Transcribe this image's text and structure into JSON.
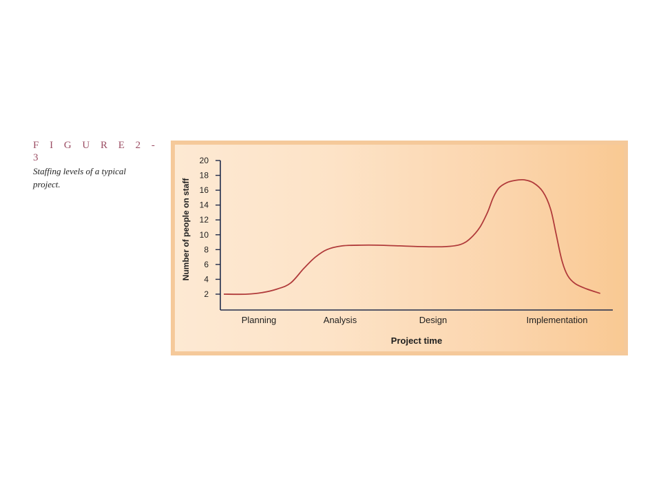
{
  "figure": {
    "label": "F I G U R E   2 - 3",
    "caption_line1": "Staffing levels of a typical",
    "caption_line2": "project."
  },
  "chart_data": {
    "type": "line",
    "title": "",
    "xlabel": "Project time",
    "ylabel": "Number of people on staff",
    "ylim": [
      0,
      20
    ],
    "yticks": [
      2,
      4,
      6,
      8,
      10,
      12,
      14,
      16,
      18,
      20
    ],
    "phases": [
      "Planning",
      "Analysis",
      "Design",
      "Implementation"
    ],
    "xlim": [
      0,
      100
    ],
    "x": [
      0,
      6,
      10,
      14,
      17.5,
      21,
      24,
      27,
      31,
      36,
      40,
      46,
      52,
      58,
      62,
      64.5,
      67,
      69,
      70.5,
      72,
      74,
      76,
      78.5,
      81,
      83.5,
      85.5,
      87,
      88.5,
      90,
      92,
      95,
      98.5
    ],
    "y": [
      2,
      2,
      2.2,
      2.7,
      3.5,
      5.5,
      7,
      8,
      8.5,
      8.6,
      8.6,
      8.5,
      8.4,
      8.4,
      8.7,
      9.5,
      11,
      13,
      15,
      16.3,
      17,
      17.3,
      17.4,
      17,
      15.8,
      13.5,
      10,
      6.5,
      4.5,
      3.4,
      2.7,
      2.1
    ],
    "line_color": "#b03a3a",
    "axis_color": "#1e2a4a",
    "grid": false,
    "legend": "none"
  }
}
